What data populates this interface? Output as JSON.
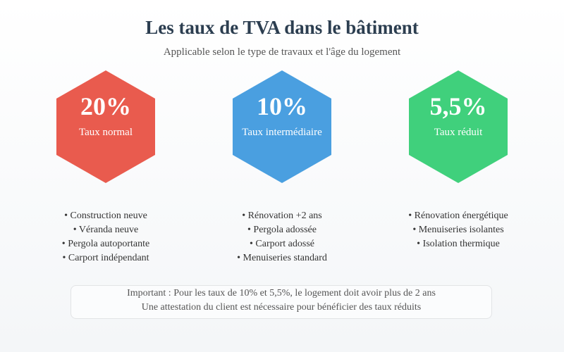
{
  "header": {
    "title": "Les taux de TVA dans le bâtiment",
    "subtitle": "Applicable selon le type de travaux et l'âge du logement"
  },
  "rates": [
    {
      "value": "20%",
      "label": "Taux normal",
      "color": "#e95b4e",
      "items": [
        "• Construction neuve",
        "• Véranda neuve",
        "• Pergola autoportante",
        "• Carport indépendant"
      ]
    },
    {
      "value": "10%",
      "label": "Taux intermédiaire",
      "color": "#4a9fe0",
      "items": [
        "• Rénovation +2 ans",
        "• Pergola adossée",
        "• Carport adossé",
        "• Menuiseries standard"
      ]
    },
    {
      "value": "5,5%",
      "label": "Taux réduit",
      "color": "#40d07c",
      "items": [
        "• Rénovation énergétique",
        "• Menuiseries isolantes",
        "• Isolation thermique"
      ]
    }
  ],
  "note": {
    "line1": "Important : Pour les taux de 10% et 5,5%, le logement doit avoir plus de 2 ans",
    "line2": "Une attestation du client est nécessaire pour bénéficier des taux réduits"
  }
}
